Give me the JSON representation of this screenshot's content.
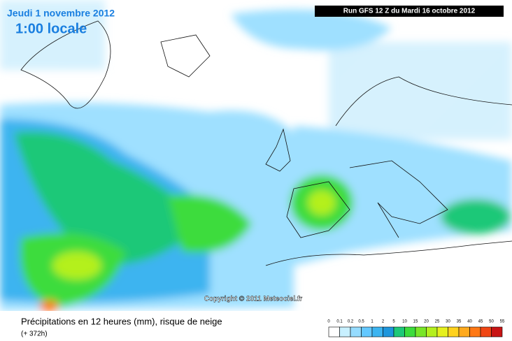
{
  "header": {
    "date": "Jeudi 1 novembre 2012",
    "time": "1:00 locale",
    "run": "Run GFS 12 Z du Mardi 16 octobre 2012"
  },
  "copyright": "Copyright © 2011 Meteociel.fr",
  "footer": {
    "title": "Précipitations en 12 heures (mm), risque de neige",
    "lead": "(+ 372h)"
  },
  "legend": {
    "labels": [
      0,
      0.1,
      0.2,
      0.5,
      1,
      2,
      5,
      10,
      15,
      20,
      25,
      30,
      35,
      40,
      45,
      50,
      55
    ],
    "colors": [
      "#ffffff",
      "#c8f0ff",
      "#96dcff",
      "#64c8ff",
      "#3cb4f0",
      "#1e96dc",
      "#1ec878",
      "#3cdc3c",
      "#78e628",
      "#b4f01e",
      "#e6f01e",
      "#ffd21e",
      "#ffaa1e",
      "#ff7814",
      "#f04614",
      "#c81414"
    ]
  }
}
